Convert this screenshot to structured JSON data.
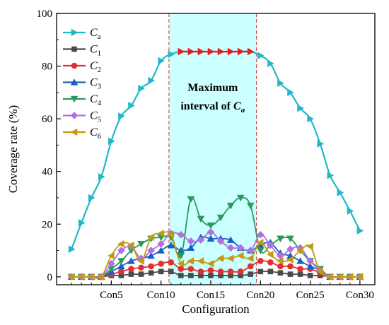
{
  "chart_data": {
    "type": "line",
    "title": "",
    "xlabel": "Configuration",
    "ylabel": "Coverage rate (%)",
    "x": [
      1,
      2,
      3,
      4,
      5,
      6,
      7,
      8,
      9,
      10,
      11,
      12,
      13,
      14,
      15,
      16,
      17,
      18,
      19,
      20,
      21,
      22,
      23,
      24,
      25,
      26,
      27,
      28,
      29,
      30
    ],
    "xlim": [
      -0.5,
      31.5
    ],
    "ylim": [
      -3,
      100
    ],
    "x_ticks": [
      {
        "x": 5,
        "label": "Con5"
      },
      {
        "x": 10,
        "label": "Con10"
      },
      {
        "x": 15,
        "label": "Con15"
      },
      {
        "x": 20,
        "label": "Con20"
      },
      {
        "x": 25,
        "label": "Con25"
      },
      {
        "x": 30,
        "label": "Con30"
      }
    ],
    "y_ticks": [
      0,
      20,
      40,
      60,
      80,
      100
    ],
    "grid": false,
    "legend_position": "top-left",
    "highlight_region": {
      "x_start": 10.8,
      "x_end": 19.6,
      "color": "#ccffff",
      "border_color": "#cc3333"
    },
    "annotation": {
      "line1": "Maximum",
      "line2_prefix": "interval of ",
      "line2_symbol": "C",
      "line2_sub": "a"
    },
    "series": [
      {
        "name": "Ca",
        "symbol": "C",
        "subscript": "a",
        "color": "#20b8c8",
        "marker": "triangle-right",
        "values": [
          10.5,
          20.5,
          30,
          38,
          51.5,
          61,
          65,
          71.5,
          74.5,
          82,
          84.5,
          85.5,
          85.5,
          85.5,
          85.5,
          85.5,
          85.5,
          85.5,
          85.5,
          84,
          81,
          73.5,
          70,
          64,
          60,
          50.5,
          38.5,
          32,
          25,
          17.5
        ]
      },
      {
        "name": "C1",
        "symbol": "C",
        "subscript": "1",
        "color": "#4a4a4a",
        "marker": "square",
        "values": [
          0,
          0,
          0,
          0,
          0.5,
          0.5,
          1,
          1,
          1.5,
          2,
          2,
          0.5,
          0.5,
          0.5,
          0.5,
          0.5,
          0.5,
          0.5,
          1,
          2,
          2,
          1.5,
          1,
          1,
          0.5,
          0.5,
          0,
          0,
          0,
          0
        ]
      },
      {
        "name": "C2",
        "symbol": "C",
        "subscript": "2",
        "color": "#e03030",
        "marker": "circle",
        "values": [
          0,
          0,
          0,
          0,
          1,
          2,
          3,
          3.5,
          4,
          5,
          5.5,
          3,
          3,
          2,
          2.5,
          2,
          2,
          2,
          4,
          6,
          5.5,
          4,
          4,
          3,
          3,
          1.5,
          0,
          0,
          0,
          0
        ]
      },
      {
        "name": "C3",
        "symbol": "C",
        "subscript": "3",
        "color": "#1a5ec8",
        "marker": "triangle-up",
        "values": [
          0,
          0,
          0,
          0,
          2,
          4,
          6,
          7,
          8,
          10,
          12,
          10,
          11,
          15,
          14.5,
          14.5,
          14,
          11,
          10,
          12,
          13,
          9,
          8,
          6,
          4,
          2.5,
          0,
          0,
          0,
          0
        ]
      },
      {
        "name": "C4",
        "symbol": "C",
        "subscript": "4",
        "color": "#2a9a5a",
        "marker": "triangle-down",
        "values": [
          0,
          0,
          0,
          0,
          3,
          6,
          10,
          12.5,
          14.5,
          15,
          15,
          8,
          29.5,
          22,
          19.5,
          22.5,
          27,
          30,
          27,
          10,
          12,
          14.5,
          14.5,
          10,
          6,
          3,
          0,
          0,
          0,
          0
        ]
      },
      {
        "name": "C5",
        "symbol": "C",
        "subscript": "5",
        "color": "#b070e0",
        "marker": "diamond",
        "values": [
          0,
          0,
          0,
          0,
          5,
          10,
          11.5,
          7,
          10,
          12.5,
          16.5,
          16,
          13.5,
          14,
          17,
          13.5,
          11,
          11,
          10,
          16,
          12,
          8,
          10.5,
          11,
          6,
          2.5,
          0,
          0,
          0,
          0
        ]
      },
      {
        "name": "C6",
        "symbol": "C",
        "subscript": "6",
        "color": "#c49a10",
        "marker": "triangle-left",
        "values": [
          0,
          0,
          0,
          0,
          8,
          12.5,
          12,
          6,
          15,
          16.5,
          16,
          5,
          6,
          6,
          5,
          7,
          7,
          8,
          7,
          13,
          8.5,
          6,
          6.5,
          10,
          11.5,
          2,
          0,
          0,
          0,
          0
        ]
      }
    ]
  }
}
